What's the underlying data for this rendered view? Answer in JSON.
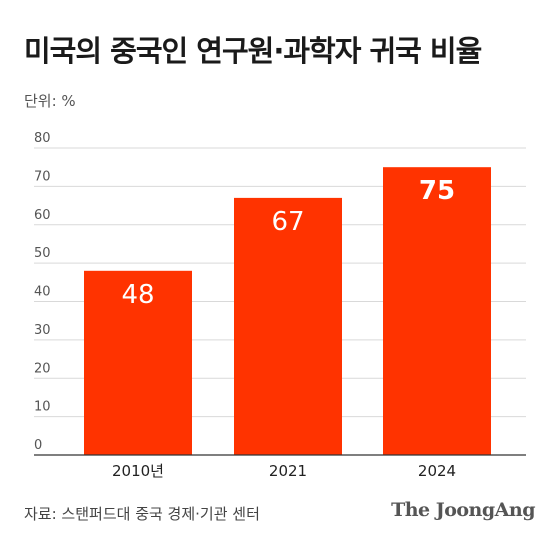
{
  "header": {
    "title": "미국의 중국인 연구원·과학자 귀국 비율",
    "unit": "단위: %"
  },
  "footer": {
    "source": "자료: 스탠퍼드대 중국 경제·기관 센터",
    "brand": "The JoongAng"
  },
  "colors": {
    "bar": "#FF3300",
    "grid": "#d9d9d9",
    "axis": "#333333",
    "tick": "#555555"
  },
  "chart_data": {
    "type": "bar",
    "categories": [
      "2010년",
      "2021",
      "2024"
    ],
    "values": [
      48,
      67,
      75
    ],
    "data_labels": [
      "48",
      "67",
      "75"
    ],
    "ylim": [
      0,
      80
    ],
    "yticks": [
      0,
      10,
      20,
      30,
      40,
      50,
      60,
      70,
      80
    ],
    "grid": true,
    "legend": "none"
  }
}
